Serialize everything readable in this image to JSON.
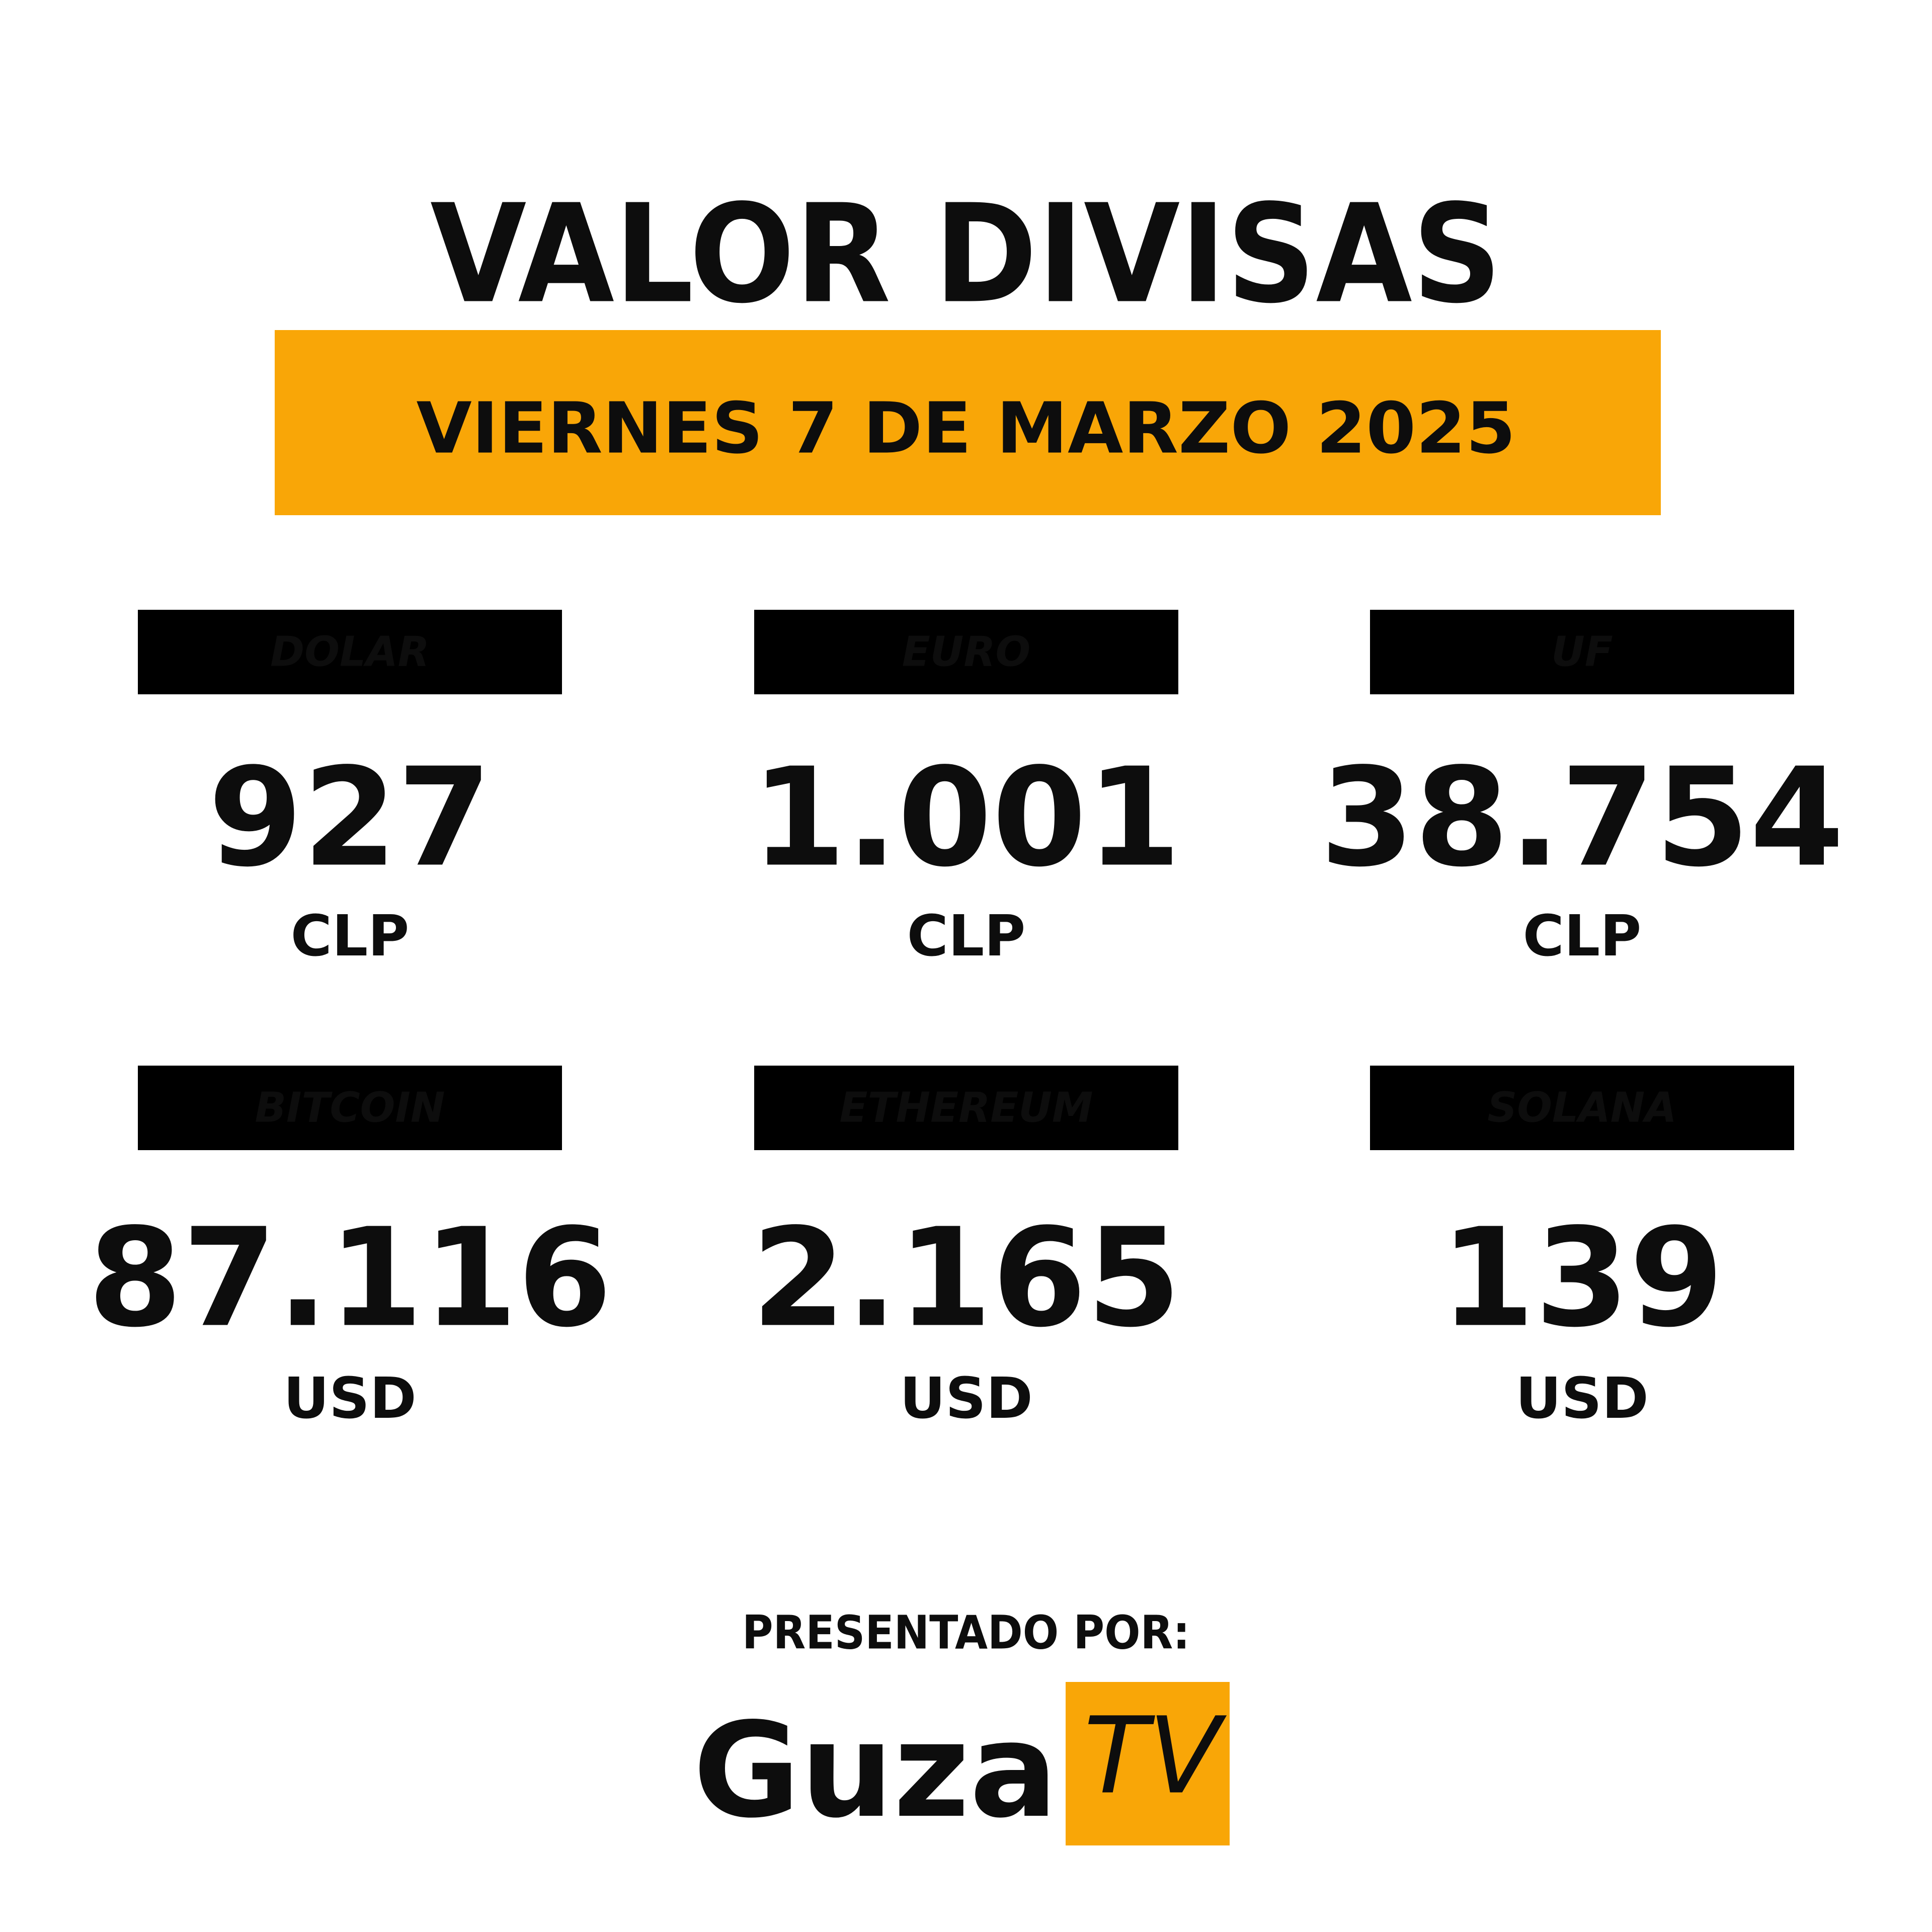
{
  "header": {
    "title": "VALOR DIVISAS",
    "date": "VIERNES 7 DE MARZO 2025"
  },
  "items": [
    {
      "label": "DOLAR",
      "value": "927",
      "unit": "CLP"
    },
    {
      "label": "EURO",
      "value": "1.001",
      "unit": "CLP"
    },
    {
      "label": "UF",
      "value": "38.754",
      "unit": "CLP"
    },
    {
      "label": "BITCOIN",
      "value": "87.116",
      "unit": "USD"
    },
    {
      "label": "ETHEREUM",
      "value": "2.165",
      "unit": "USD"
    },
    {
      "label": "SOLANA",
      "value": "139",
      "unit": "USD"
    }
  ],
  "footer": {
    "presented_by": "PRESENTADO POR:",
    "logo_main": "Guza",
    "logo_badge": "TV"
  }
}
